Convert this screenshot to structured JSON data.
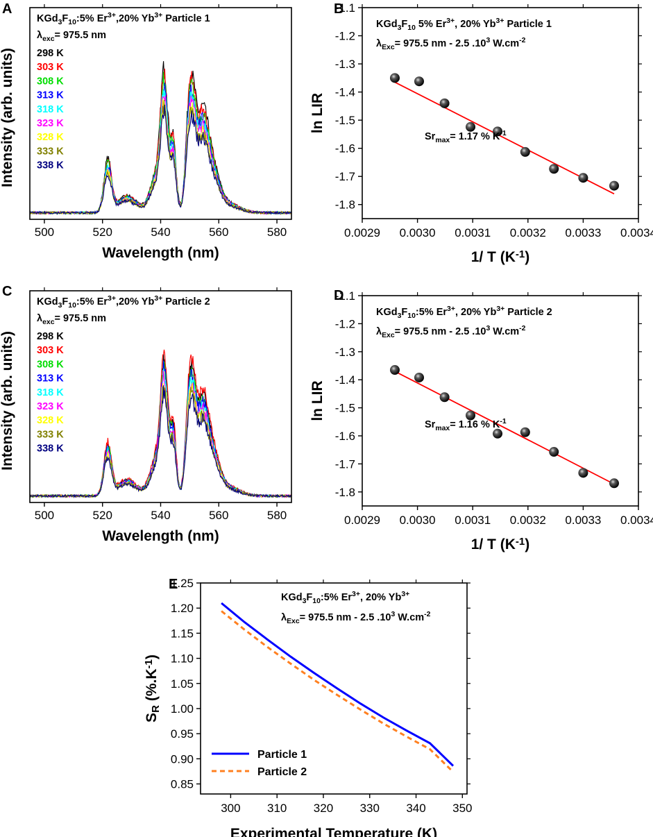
{
  "chart_data": [
    {
      "panel": "A",
      "type": "line",
      "title_lines": [
        {
          "base": "KGd",
          "sub1": "3",
          "mid1": "F",
          "sub2": "10",
          "mid2": ":5% Er",
          "sup1": "3+",
          "mid3": ",20% Yb",
          "sup2": "3+",
          "tail": " Particle 1"
        },
        {
          "sym": "λ",
          "sub": "exc",
          "tail": "= 975.5 nm"
        }
      ],
      "xlabel": "Wavelength (nm)",
      "ylabel": "Intensity (arb. units)",
      "xlim": [
        495,
        585
      ],
      "ylim": [
        0,
        1.13
      ],
      "xticks": [
        "500",
        "520",
        "540",
        "560",
        "580"
      ],
      "xtick_values": [
        500,
        520,
        540,
        560,
        580
      ],
      "series": [
        {
          "name": "298 K",
          "color": "#000000",
          "scale": 1.0
        },
        {
          "name": "303 K",
          "color": "#ff0000",
          "scale": 0.97
        },
        {
          "name": "308 K",
          "color": "#00dd00",
          "scale": 0.92
        },
        {
          "name": "313 K",
          "color": "#0000ff",
          "scale": 0.88
        },
        {
          "name": "318 K",
          "color": "#00ffff",
          "scale": 0.84
        },
        {
          "name": "323 K",
          "color": "#ff00ff",
          "scale": 0.8
        },
        {
          "name": "328 K",
          "color": "#ffff00",
          "scale": 0.76
        },
        {
          "name": "333 K",
          "color": "#808000",
          "scale": 0.73
        },
        {
          "name": "338 K",
          "color": "#000080",
          "scale": 0.7
        }
      ]
    },
    {
      "panel": "B",
      "type": "scatter",
      "title_lines": [
        {
          "base": "KGd",
          "sub1": "3",
          "mid1": "F",
          "sub2": "10",
          "mid2": " 5% Er",
          "sup1": "3+",
          "mid3": ", 20% Yb",
          "sup2": "3+",
          "tail": " Particle 1"
        },
        {
          "sym": "λ",
          "sub": "Exc",
          "tail": "= 975.5 nm - 2.5 .10",
          "sup": "3",
          "tail2": " W.cm",
          "sup2": "-2"
        }
      ],
      "annotation": {
        "base": "Sr",
        "sub": "max",
        "tail": "= 1.17 % K",
        "sup": "-1"
      },
      "xlabel": "1/ T (K",
      "xlabel_sup": "-1",
      "xlabel_end": ")",
      "ylabel": "ln LIR",
      "xlim": [
        0.0029,
        0.0034
      ],
      "ylim": [
        -1.85,
        -1.1
      ],
      "xticks": [
        "0.0029",
        "0.0030",
        "0.0031",
        "0.0032",
        "0.0033",
        "0.0034"
      ],
      "xtick_values": [
        0.0029,
        0.003,
        0.0031,
        0.0032,
        0.0033,
        0.0034
      ],
      "yticks": [
        "-1.1",
        "-1.2",
        "-1.3",
        "-1.4",
        "-1.5",
        "-1.6",
        "-1.7",
        "-1.8"
      ],
      "ytick_values": [
        -1.1,
        -1.2,
        -1.3,
        -1.4,
        -1.5,
        -1.6,
        -1.7,
        -1.8
      ],
      "x": [
        0.002959,
        0.003003,
        0.003049,
        0.003096,
        0.003145,
        0.003195,
        0.003247,
        0.0033,
        0.003356
      ],
      "y": [
        -1.35,
        -1.362,
        -1.44,
        -1.524,
        -1.54,
        -1.613,
        -1.673,
        -1.705,
        -1.733
      ],
      "fit": {
        "x": [
          0.002959,
          0.003356
        ],
        "y": [
          -1.365,
          -1.762
        ],
        "color": "#ff0000"
      }
    },
    {
      "panel": "C",
      "type": "line",
      "title_lines": [
        {
          "base": "KGd",
          "sub1": "3",
          "mid1": "F",
          "sub2": "10",
          "mid2": ":5% Er",
          "sup1": "3+",
          "mid3": ",20% Yb",
          "sup2": "3+",
          "tail": " Particle 2"
        },
        {
          "sym": "λ",
          "sub": "exc",
          "tail": "= 975.5 nm"
        }
      ],
      "xlabel": "Wavelength (nm)",
      "ylabel": "Intensity (arb. units)",
      "xlim": [
        495,
        585
      ],
      "ylim": [
        0,
        1.13
      ],
      "xticks": [
        "500",
        "520",
        "540",
        "560",
        "580"
      ],
      "xtick_values": [
        500,
        520,
        540,
        560,
        580
      ],
      "series": [
        {
          "name": "298 K",
          "color": "#000000",
          "scale": 0.93
        },
        {
          "name": "303 K",
          "color": "#ff0000",
          "scale": 1.0
        },
        {
          "name": "308 K",
          "color": "#00dd00",
          "scale": 0.9
        },
        {
          "name": "313 K",
          "color": "#0000ff",
          "scale": 0.88
        },
        {
          "name": "318 K",
          "color": "#00ffff",
          "scale": 0.84
        },
        {
          "name": "323 K",
          "color": "#ff00ff",
          "scale": 0.81
        },
        {
          "name": "328 K",
          "color": "#ffff00",
          "scale": 0.77
        },
        {
          "name": "333 K",
          "color": "#808000",
          "scale": 0.74
        },
        {
          "name": "338 K",
          "color": "#000080",
          "scale": 0.71
        }
      ]
    },
    {
      "panel": "D",
      "type": "scatter",
      "title_lines": [
        {
          "base": "KGd",
          "sub1": "3",
          "mid1": "F",
          "sub2": "10",
          "mid2": ":5% Er",
          "sup1": "3+",
          "mid3": ", 20% Yb",
          "sup2": "3+",
          "tail": " Particle 2"
        },
        {
          "sym": "λ",
          "sub": "Exc",
          "tail": "= 975.5 nm - 2.5 .10",
          "sup": "3",
          "tail2": " W.cm",
          "sup2": "-2"
        }
      ],
      "annotation": {
        "base": "Sr",
        "sub": "max",
        "tail": "= 1.16 % K",
        "sup": "-1"
      },
      "xlabel": "1/ T (K",
      "xlabel_sup": "-1",
      "xlabel_end": ")",
      "ylabel": "ln LIR",
      "xlim": [
        0.0029,
        0.0034
      ],
      "ylim": [
        -1.85,
        -1.1
      ],
      "xticks": [
        "0.0029",
        "0.0030",
        "0.0031",
        "0.0032",
        "0.0033",
        "0.0034"
      ],
      "xtick_values": [
        0.0029,
        0.003,
        0.0031,
        0.0032,
        0.0033,
        0.0034
      ],
      "yticks": [
        "-1.1",
        "-1.2",
        "-1.3",
        "-1.4",
        "-1.5",
        "-1.6",
        "-1.7",
        "-1.8"
      ],
      "ytick_values": [
        -1.1,
        -1.2,
        -1.3,
        -1.4,
        -1.5,
        -1.6,
        -1.7,
        -1.8
      ],
      "x": [
        0.002959,
        0.003003,
        0.003049,
        0.003096,
        0.003145,
        0.003195,
        0.003247,
        0.0033,
        0.003356
      ],
      "y": [
        -1.365,
        -1.392,
        -1.462,
        -1.527,
        -1.592,
        -1.587,
        -1.657,
        -1.732,
        -1.769
      ],
      "fit": {
        "x": [
          0.002959,
          0.003356
        ],
        "y": [
          -1.37,
          -1.772
        ],
        "color": "#ff0000"
      }
    },
    {
      "panel": "E",
      "type": "line",
      "title_lines": [
        {
          "base": "KGd",
          "sub1": "3",
          "mid1": "F",
          "sub2": "10",
          "mid2": ":5% Er",
          "sup1": "3+",
          "mid3": ", 20% Yb",
          "sup2": "3+",
          "tail": ""
        },
        {
          "sym": "λ",
          "sub": "Exc",
          "tail": "= 975.5 nm - 2.5 .10",
          "sup": "3",
          "tail2": " W.cm",
          "sup2": "-2"
        }
      ],
      "xlabel": "Experimental Temperature (K)",
      "ylabel": {
        "base": "S",
        "sub": "R",
        "tail": " (%.K",
        "sup": "-1",
        "end": ")"
      },
      "xlim": [
        293.5,
        351
      ],
      "ylim": [
        0.83,
        1.25
      ],
      "xticks": [
        "300",
        "310",
        "320",
        "330",
        "340",
        "350"
      ],
      "xtick_values": [
        300,
        310,
        320,
        330,
        340,
        350
      ],
      "yticks": [
        "1.25",
        "1.20",
        "1.15",
        "1.10",
        "1.05",
        "1.00",
        "0.95",
        "0.90",
        "0.85"
      ],
      "ytick_values": [
        1.25,
        1.2,
        1.15,
        1.1,
        1.05,
        1.0,
        0.95,
        0.9,
        0.85
      ],
      "series": [
        {
          "name": "Particle 1",
          "color": "#0000ff",
          "style": "solid",
          "x": [
            298,
            303,
            308,
            313,
            318,
            323,
            328,
            333,
            338,
            343,
            348
          ],
          "y": [
            1.21,
            1.172,
            1.137,
            1.103,
            1.071,
            1.04,
            1.01,
            0.982,
            0.956,
            0.931,
            0.886
          ]
        },
        {
          "name": "Particle 2",
          "color": "#ff8020",
          "style": "dashed",
          "x": [
            298,
            303,
            308,
            313,
            318,
            323,
            328,
            333,
            338,
            343,
            348
          ],
          "y": [
            1.194,
            1.157,
            1.122,
            1.089,
            1.057,
            1.027,
            0.998,
            0.97,
            0.944,
            0.919,
            0.874
          ]
        }
      ]
    }
  ]
}
